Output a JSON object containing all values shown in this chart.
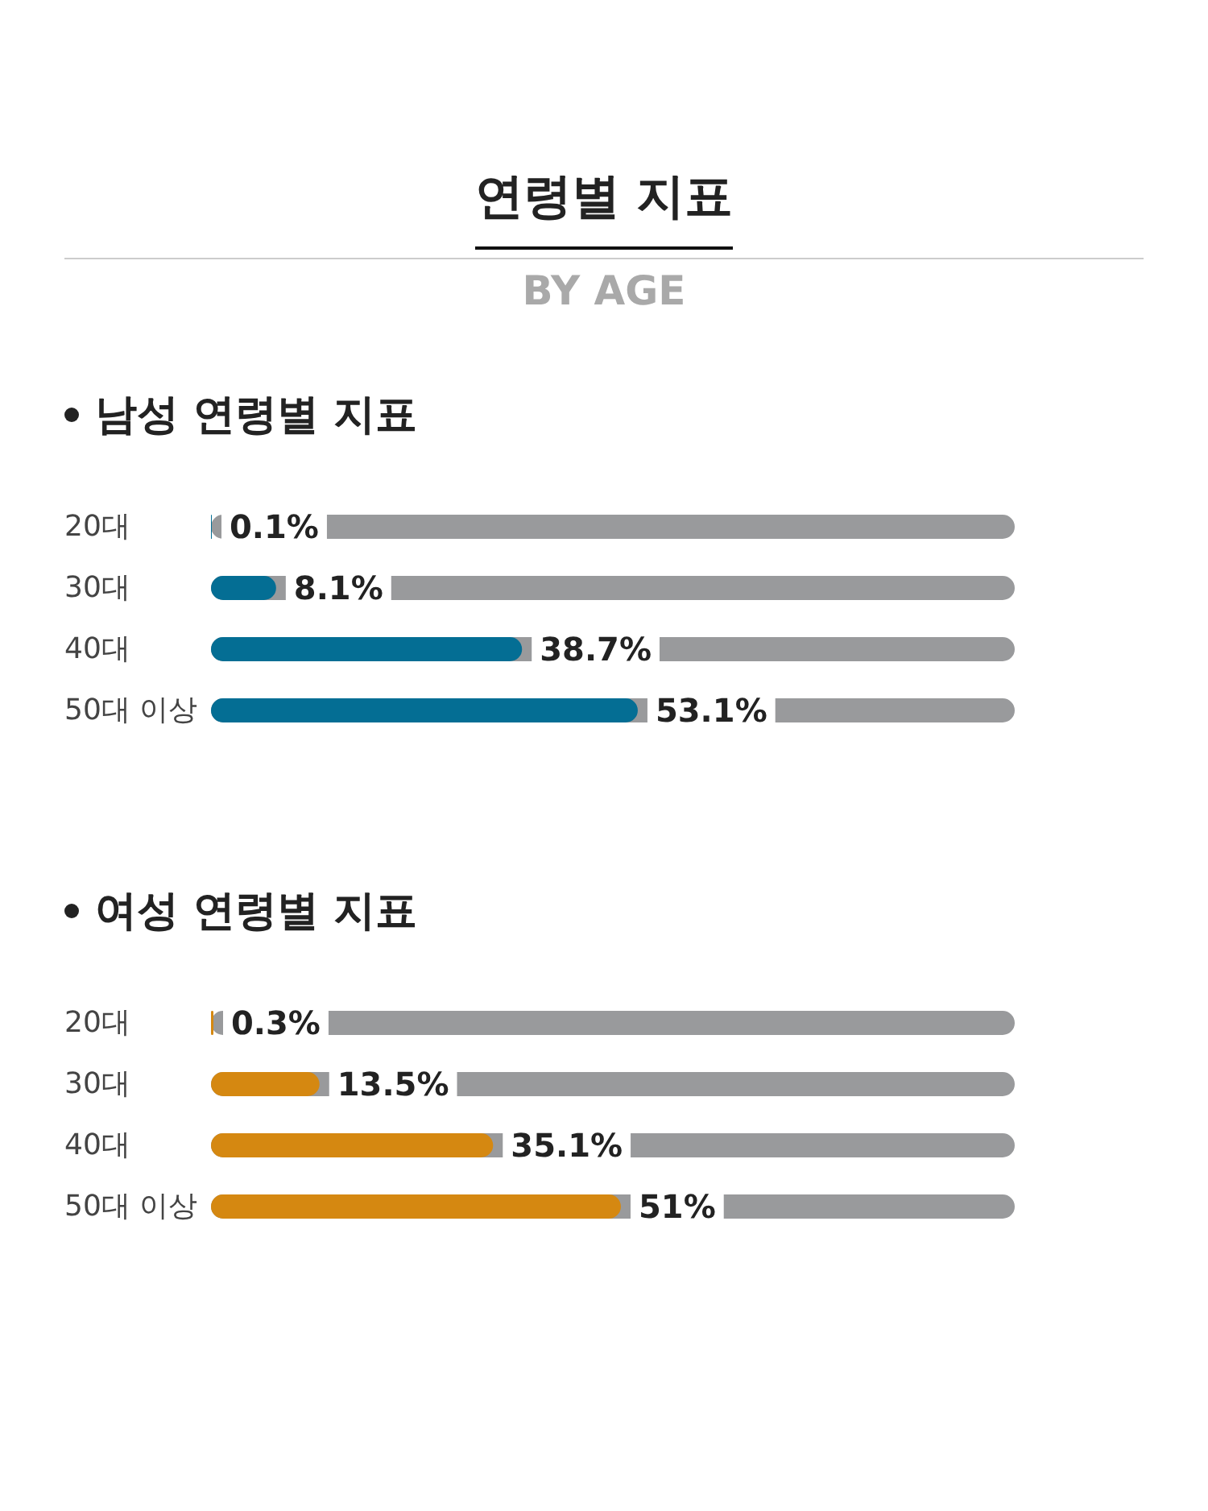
{
  "chart_data": [
    {
      "type": "other",
      "title": "연령별 지표",
      "subtitle": "BY AGE"
    },
    {
      "type": "bar",
      "orientation": "horizontal",
      "title": "남성 연령별 지표",
      "categories": [
        "20대",
        "30대",
        "40대",
        "50대 이상"
      ],
      "values": [
        0.1,
        8.1,
        38.7,
        53.1
      ],
      "value_labels": [
        "0.1%",
        "8.1%",
        "38.7%",
        "53.1%"
      ],
      "color": "#046e94",
      "xlim": [
        0,
        100
      ],
      "tick_labels": "y",
      "grid": false
    },
    {
      "type": "bar",
      "orientation": "horizontal",
      "title": "여성 연령별 지표",
      "categories": [
        "20대",
        "30대",
        "40대",
        "50대 이상"
      ],
      "values": [
        0.3,
        13.5,
        35.1,
        51
      ],
      "value_labels": [
        "0.3%",
        "13.5%",
        "35.1%",
        "51%"
      ],
      "color": "#d58811",
      "xlim": [
        0,
        100
      ],
      "tick_labels": "y",
      "grid": false
    }
  ]
}
